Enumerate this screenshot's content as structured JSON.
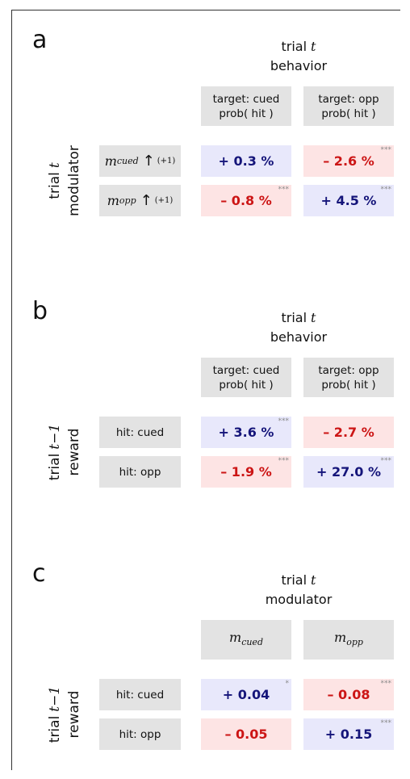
{
  "panels": [
    {
      "letter": "a",
      "header": {
        "line1": {
          "text": "trial",
          "var": "t"
        },
        "line2": "behavior"
      },
      "columns": [
        {
          "line1": "target: cued",
          "line2": "prob( hit )"
        },
        {
          "line1": "target: opp",
          "line2": "prob( hit )"
        }
      ],
      "side_label": {
        "line1": {
          "text": "trial",
          "var": "t"
        },
        "line2": "modulator"
      },
      "rows": [
        {
          "label": {
            "var": "m",
            "sub": "cued",
            "arrow": "↑",
            "step": "(+1)"
          },
          "cells": [
            {
              "text": "+ 0.3 %",
              "sign": "pos",
              "stars": null
            },
            {
              "text": "– 2.6 %",
              "sign": "neg",
              "stars": "***"
            }
          ]
        },
        {
          "label": {
            "var": "m",
            "sub": "opp",
            "arrow": "↑",
            "step": "(+1)"
          },
          "cells": [
            {
              "text": "– 0.8 %",
              "sign": "neg",
              "stars": "***"
            },
            {
              "text": "+ 4.5 %",
              "sign": "pos",
              "stars": "***"
            }
          ]
        }
      ]
    },
    {
      "letter": "b",
      "header": {
        "line1": {
          "text": "trial",
          "var": "t"
        },
        "line2": "behavior"
      },
      "columns": [
        {
          "line1": "target: cued",
          "line2": "prob( hit )"
        },
        {
          "line1": "target: opp",
          "line2": "prob( hit )"
        }
      ],
      "side_label": {
        "line1": {
          "text": "trial",
          "var": "t−1"
        },
        "line2": "reward"
      },
      "rows": [
        {
          "label": {
            "plain": "hit: cued"
          },
          "cells": [
            {
              "text": "+ 3.6 %",
              "sign": "pos",
              "stars": "***"
            },
            {
              "text": "– 2.7 %",
              "sign": "neg",
              "stars": null
            }
          ]
        },
        {
          "label": {
            "plain": "hit: opp"
          },
          "cells": [
            {
              "text": "– 1.9 %",
              "sign": "neg",
              "stars": "***"
            },
            {
              "text": "+ 27.0 %",
              "sign": "pos",
              "stars": "***"
            }
          ]
        }
      ]
    },
    {
      "letter": "c",
      "header": {
        "line1": {
          "text": "trial",
          "var": "t"
        },
        "line2": "modulator"
      },
      "columns": [
        {
          "var": "m",
          "sub": "cued"
        },
        {
          "var": "m",
          "sub": "opp"
        }
      ],
      "side_label": {
        "line1": {
          "text": "trial",
          "var": "t−1"
        },
        "line2": "reward"
      },
      "rows": [
        {
          "label": {
            "plain": "hit: cued"
          },
          "cells": [
            {
              "text": "+ 0.04",
              "sign": "pos",
              "stars": "*"
            },
            {
              "text": "– 0.08",
              "sign": "neg",
              "stars": "***"
            }
          ]
        },
        {
          "label": {
            "plain": "hit: opp"
          },
          "cells": [
            {
              "text": "– 0.05",
              "sign": "neg",
              "stars": null
            },
            {
              "text": "+ 0.15",
              "sign": "pos",
              "stars": "***"
            }
          ]
        }
      ]
    }
  ]
}
